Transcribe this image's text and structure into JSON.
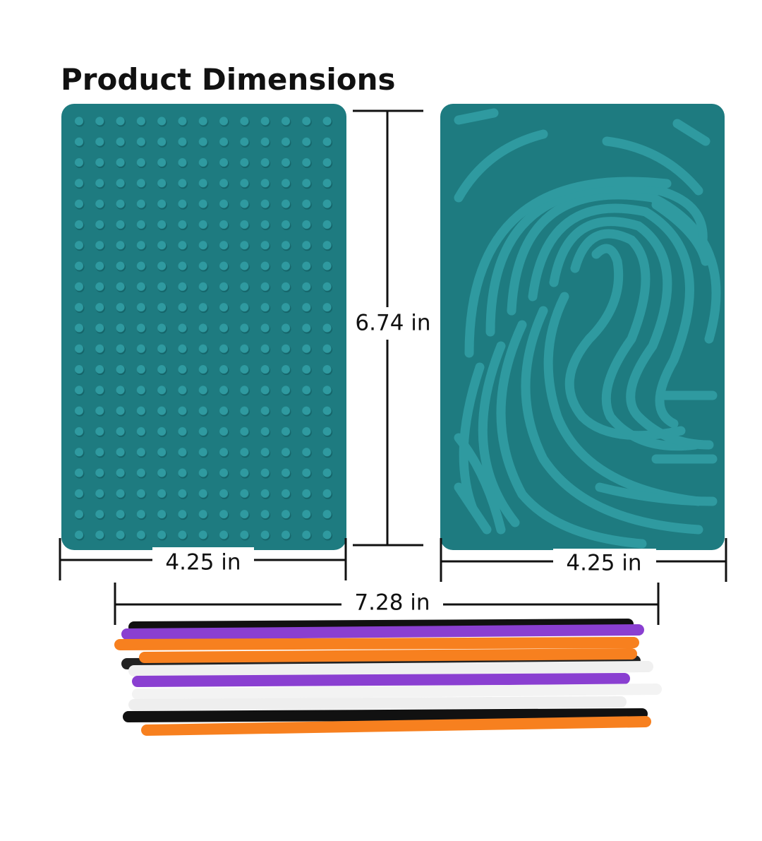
{
  "title": "Product Dimensions",
  "dimensions": {
    "height": "6.74 in",
    "left_width": "4.25 in",
    "right_width": "4.25 in",
    "total_width": "7.28 in"
  }
}
